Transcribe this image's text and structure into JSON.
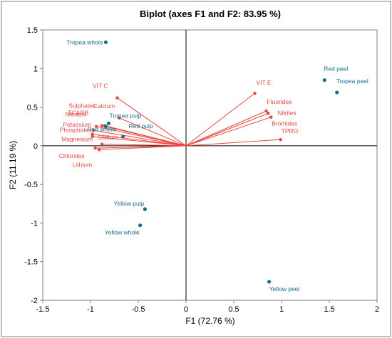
{
  "chart_data": {
    "type": "scatter",
    "title": "Biplot (axes F1 and F2: 83.95 %)",
    "xlabel": "F1 (72.76 %)",
    "ylabel": "F2 (11.19 %)",
    "xlim": [
      -1.5,
      2
    ],
    "ylim": [
      -2,
      1.5
    ],
    "xticks": [
      -1.5,
      -1,
      -0.5,
      0,
      0.5,
      1,
      1.5,
      2
    ],
    "yticks": [
      -2,
      -1.5,
      -1,
      -0.5,
      0,
      0.5,
      1,
      1.5
    ],
    "grid": false,
    "colors": {
      "variables": "#e8473e",
      "observations": "#1a6e8e",
      "frame": "#7f7f7f"
    },
    "variables": [
      {
        "name": "VIT C",
        "x": -0.72,
        "y": 0.62
      },
      {
        "name": "Calcium",
        "x": -0.7,
        "y": 0.36
      },
      {
        "name": "Sulphates",
        "x": -0.85,
        "y": 0.26
      },
      {
        "name": "TCARB",
        "x": -0.88,
        "y": 0.26
      },
      {
        "name": "Nitrates",
        "x": -0.94,
        "y": 0.25
      },
      {
        "name": "Potassium",
        "x": -0.97,
        "y": 0.2
      },
      {
        "name": "Phosphates",
        "x": -0.98,
        "y": 0.15
      },
      {
        "name": "Sodium",
        "x": -0.98,
        "y": 0.12
      },
      {
        "name": "Magnesium",
        "x": -0.88,
        "y": 0.02
      },
      {
        "name": "Chlorides",
        "x": -0.95,
        "y": -0.03
      },
      {
        "name": "Lithium",
        "x": -0.91,
        "y": -0.05
      },
      {
        "name": "VIT E",
        "x": 0.72,
        "y": 0.68
      },
      {
        "name": "Fluorides",
        "x": 0.84,
        "y": 0.45
      },
      {
        "name": "Nitrites",
        "x": 0.86,
        "y": 0.42
      },
      {
        "name": "Bromides",
        "x": 0.89,
        "y": 0.37
      },
      {
        "name": "TPRO",
        "x": 0.99,
        "y": 0.08
      }
    ],
    "observations": [
      {
        "name": "Tropea whole",
        "x": -0.84,
        "y": 1.34
      },
      {
        "name": "Red peel",
        "x": 1.45,
        "y": 0.85
      },
      {
        "name": "Tropea peel",
        "x": 1.58,
        "y": 0.69
      },
      {
        "name": "Tropea pulp",
        "x": -0.81,
        "y": 0.29
      },
      {
        "name": "Red whole",
        "x": -0.84,
        "y": 0.25
      },
      {
        "name": "Red pulp",
        "x": -0.66,
        "y": 0.12
      },
      {
        "name": "Yellow pulp",
        "x": -0.43,
        "y": -0.82
      },
      {
        "name": "Yellow whole",
        "x": -0.48,
        "y": -1.03
      },
      {
        "name": "Yellow peel",
        "x": 0.87,
        "y": -1.76
      }
    ]
  }
}
